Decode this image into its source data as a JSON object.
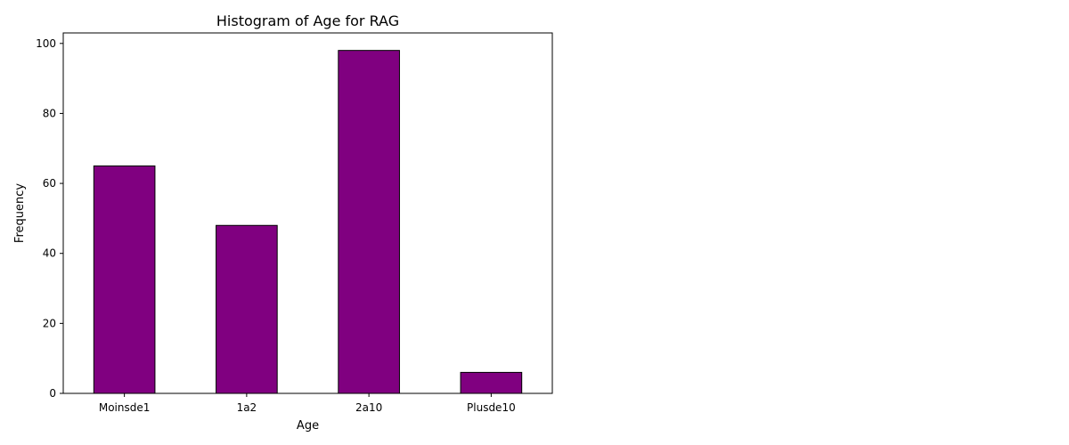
{
  "chart_data": {
    "type": "bar",
    "title": "Histogram of Age for RAG",
    "xlabel": "Age",
    "ylabel": "Frequency",
    "categories": [
      "Moinsde1",
      "1a2",
      "2a10",
      "Plusde10"
    ],
    "values": [
      65,
      48,
      98,
      6
    ],
    "ylim": [
      0,
      103
    ],
    "yticks": [
      0,
      20,
      40,
      60,
      80,
      100
    ],
    "bar_color": "#800080",
    "edge_color": "#000000",
    "grid": false,
    "legend": "none"
  }
}
